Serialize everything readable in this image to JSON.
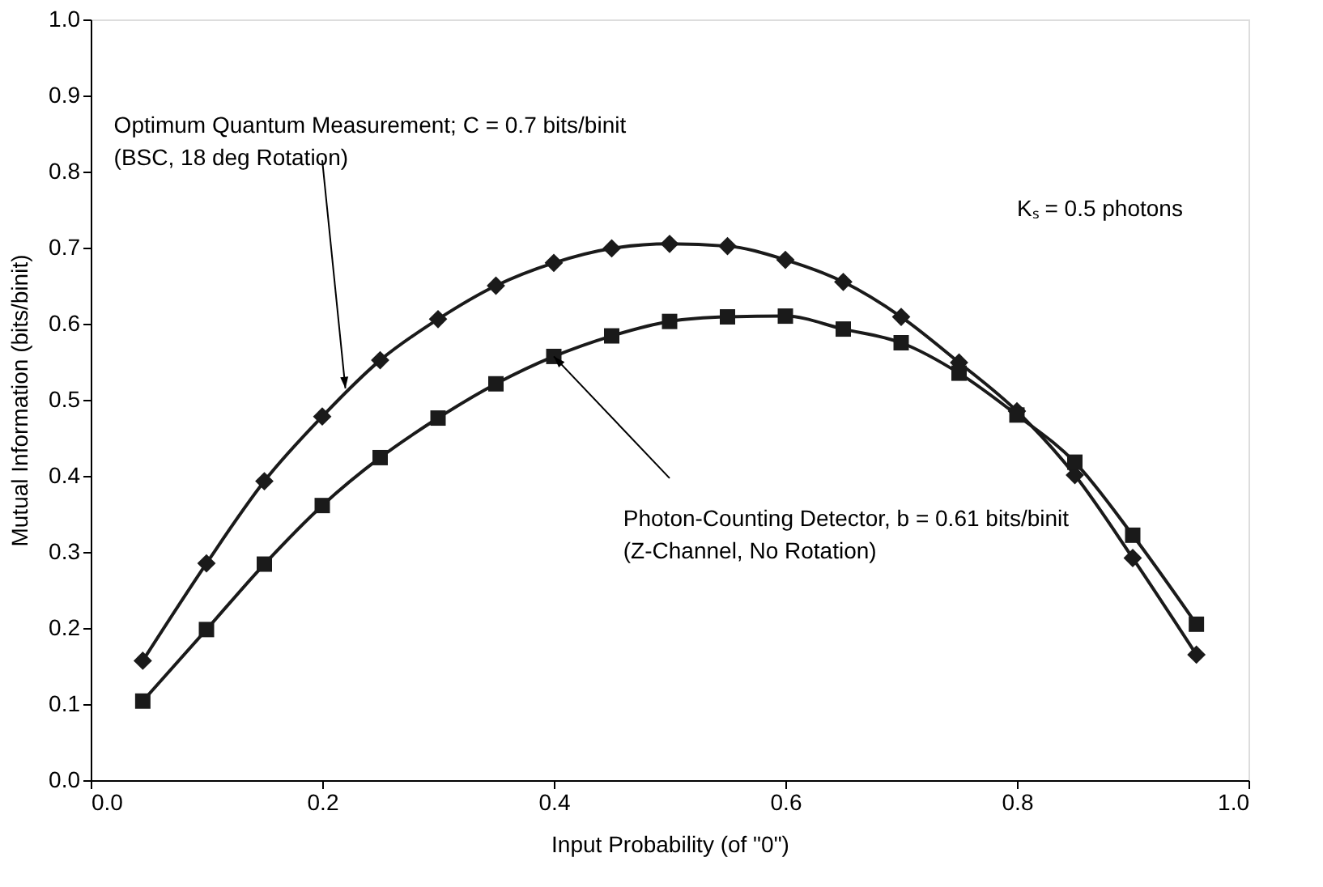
{
  "chart_data": {
    "type": "line",
    "xlabel": "Input Probability (of \"0\")",
    "ylabel": "Mutual Information (bits/binit)",
    "x": [
      0.045,
      0.1,
      0.15,
      0.2,
      0.25,
      0.3,
      0.35,
      0.4,
      0.45,
      0.5,
      0.55,
      0.6,
      0.65,
      0.7,
      0.75,
      0.8,
      0.85,
      0.9,
      0.955
    ],
    "series": [
      {
        "color": "#1a1a1a",
        "marker": "diamond",
        "values": [
          0.157,
          0.285,
          0.393,
          0.478,
          0.552,
          0.606,
          0.65,
          0.68,
          0.699,
          0.705,
          0.702,
          0.684,
          0.655,
          0.609,
          0.549,
          0.485,
          0.401,
          0.292,
          0.165
        ]
      },
      {
        "color": "#1a1a1a",
        "marker": "square",
        "values": [
          0.104,
          0.198,
          0.284,
          0.361,
          0.424,
          0.476,
          0.521,
          0.557,
          0.584,
          0.603,
          0.609,
          0.61,
          0.593,
          0.575,
          0.535,
          0.48,
          0.418,
          0.322,
          0.205
        ]
      }
    ],
    "annotations": [
      {
        "text": "Optimum Quantum Measurement; C = 0.7 bits/binit\n(BSC, 18 deg Rotation)",
        "x": 0.22,
        "y": 0.515
      },
      {
        "text": "Photon-Counting Detector, b = 0.61 bits/binit\n(Z-Channel, No Rotation)",
        "x": 0.4,
        "y": 0.557
      },
      "Kₛ = 0.5 photons"
    ],
    "xlim": [
      0.0,
      1.0
    ],
    "xticks": [
      {
        "value": 0,
        "label": "0.0"
      },
      0.2,
      0.4,
      0.6,
      0.8,
      {
        "value": 1,
        "label": "1.0"
      }
    ],
    "ylim": [
      0.0,
      1.0
    ],
    "yticks": [
      {
        "value": 0,
        "label": "0.0"
      },
      0.1,
      0.2,
      0.3,
      0.4,
      0.5,
      0.6,
      0.7,
      0.8,
      0.9,
      {
        "value": 1,
        "label": "1.0"
      }
    ],
    "grid": false,
    "line_style": "solid"
  }
}
